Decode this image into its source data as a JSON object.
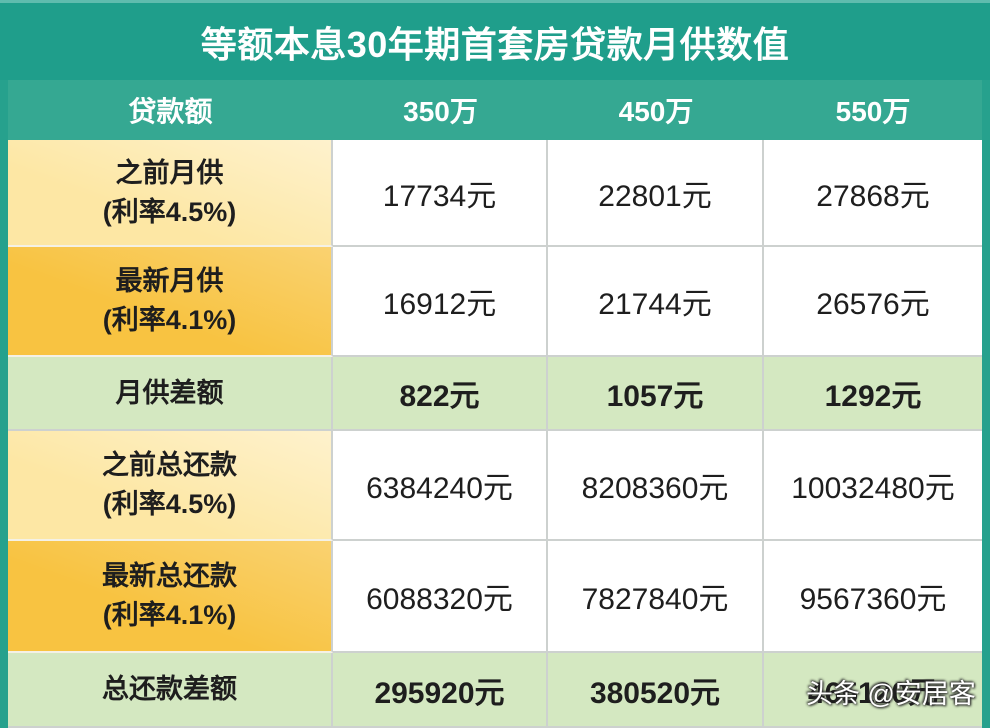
{
  "colors": {
    "title_bg": "#1f9e8b",
    "header_bg": "#35a892",
    "frame": "#26a18d",
    "label_light": "#fde7a4",
    "label_dark": "#f8c341",
    "diff_row": "#d4e8c1",
    "grid_line": "#cdd1cf",
    "text": "#1e1e1e",
    "header_text": "#ffffff"
  },
  "chart_data": {
    "type": "table",
    "title": "等额本息30年期首套房贷款月供数值",
    "columns": [
      "贷款额",
      "350万",
      "450万",
      "550万"
    ],
    "rows": [
      {
        "label": [
          "之前月供",
          "(利率4.5%)"
        ],
        "values": [
          "17734元",
          "22801元",
          "27868元"
        ]
      },
      {
        "label": [
          "最新月供",
          "(利率4.1%)"
        ],
        "values": [
          "16912元",
          "21744元",
          "26576元"
        ]
      },
      {
        "label": [
          "月供差额"
        ],
        "values": [
          "822元",
          "1057元",
          "1292元"
        ]
      },
      {
        "label": [
          "之前总还款",
          "(利率4.5%)"
        ],
        "values": [
          "6384240元",
          "8208360元",
          "10032480元"
        ]
      },
      {
        "label": [
          "最新总还款",
          "(利率4.1%)"
        ],
        "values": [
          "6088320元",
          "7827840元",
          "9567360元"
        ]
      },
      {
        "label": [
          "总还款差额"
        ],
        "values": [
          "295920元",
          "380520元",
          "465120元"
        ]
      }
    ]
  },
  "watermark": "头条 @安居客"
}
